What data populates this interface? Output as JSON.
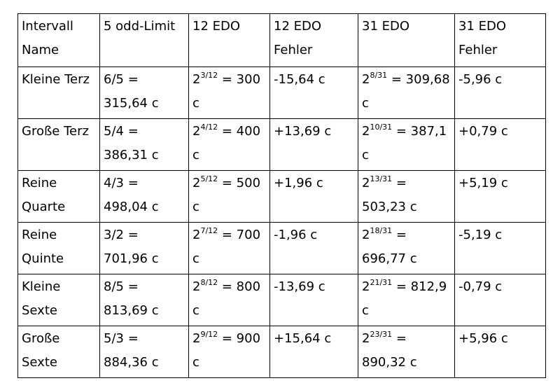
{
  "table": {
    "headers": [
      "Intervall Name",
      "5 odd-Limit",
      "12 EDO",
      "12 EDO Fehler",
      "31 EDO",
      "31 EDO Fehler"
    ],
    "rows": [
      {
        "name": "Kleine Terz",
        "odd_limit": "6/5 = 315,64 c",
        "edo12": {
          "base": "2",
          "exponent": "3/12",
          "rest": " = 300 c"
        },
        "edo12_error": "-15,64 c",
        "edo31": {
          "base": "2",
          "exponent": "8/31",
          "rest": " = 309,68 c"
        },
        "edo31_error": "-5,96 c"
      },
      {
        "name": "Große Terz",
        "odd_limit": "5/4 = 386,31 c",
        "edo12": {
          "base": "2",
          "exponent": "4/12",
          "rest": " = 400 c"
        },
        "edo12_error": "+13,69 c",
        "edo31": {
          "base": "2",
          "exponent": "10/31",
          "rest": " = 387,1 c"
        },
        "edo31_error": "+0,79 c"
      },
      {
        "name": "Reine Quarte",
        "odd_limit": "4/3 = 498,04 c",
        "edo12": {
          "base": "2",
          "exponent": "5/12",
          "rest": " = 500 c"
        },
        "edo12_error": "+1,96 c",
        "edo31": {
          "base": "2",
          "exponent": "13/31",
          "rest": " = 503,23 c"
        },
        "edo31_error": "+5,19 c"
      },
      {
        "name": "Reine Quinte",
        "odd_limit": "3/2 = 701,96 c",
        "edo12": {
          "base": "2",
          "exponent": "7/12",
          "rest": " = 700 c"
        },
        "edo12_error": "-1,96 c",
        "edo31": {
          "base": "2",
          "exponent": "18/31",
          "rest": " = 696,77 c"
        },
        "edo31_error": "-5,19 c"
      },
      {
        "name": "Kleine Sexte",
        "odd_limit": "8/5 = 813,69 c",
        "edo12": {
          "base": "2",
          "exponent": "8/12",
          "rest": " = 800 c"
        },
        "edo12_error": "-13,69 c",
        "edo31": {
          "base": "2",
          "exponent": "21/31",
          "rest": " = 812,9 c"
        },
        "edo31_error": "-0,79 c"
      },
      {
        "name": "Große Sexte",
        "odd_limit": "5/3 = 884,36 c",
        "edo12": {
          "base": "2",
          "exponent": "9/12",
          "rest": " = 900 c"
        },
        "edo12_error": "+15,64 c",
        "edo31": {
          "base": "2",
          "exponent": "23/31",
          "rest": " = 890,32 c"
        },
        "edo31_error": "+5,96 c"
      }
    ]
  }
}
